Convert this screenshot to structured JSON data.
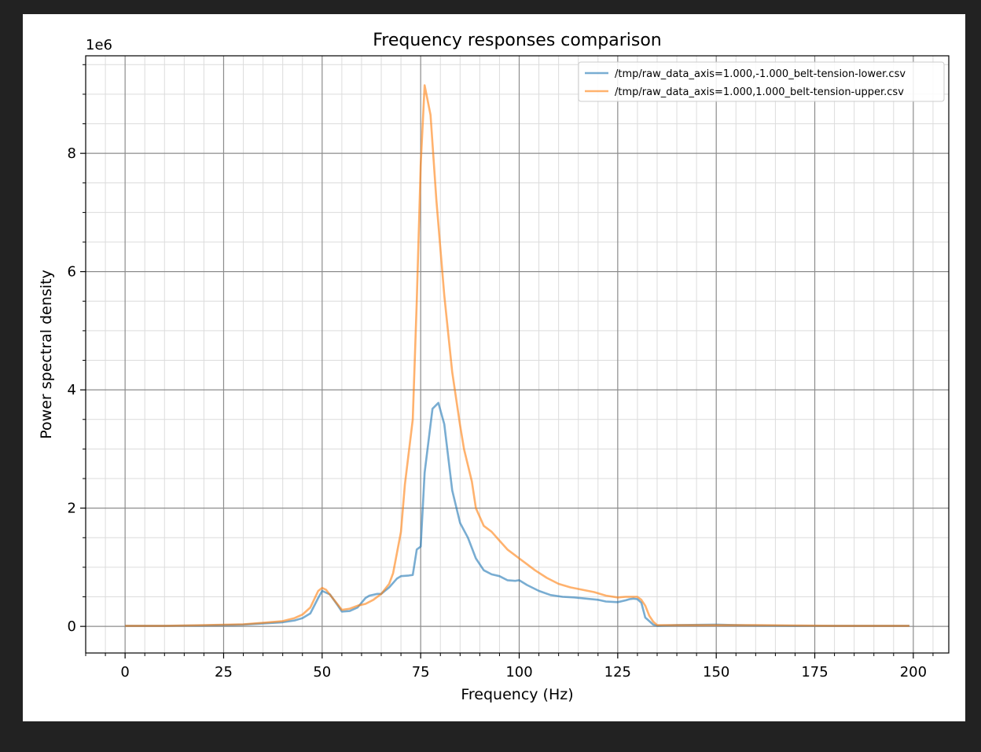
{
  "chart_data": {
    "type": "line",
    "title": "Frequency responses comparison",
    "xlabel": "Frequency (Hz)",
    "ylabel": "Power spectral density",
    "y_offset_text": "1e6",
    "xlim": [
      -10,
      209
    ],
    "ylim": [
      -0.45,
      9.65
    ],
    "y_scale_factor": 1000000,
    "xticks": [
      0,
      25,
      50,
      75,
      100,
      125,
      150,
      175,
      200
    ],
    "xtick_labels": [
      "0",
      "25",
      "50",
      "75",
      "100",
      "125",
      "150",
      "175",
      "200"
    ],
    "yticks": [
      0,
      2,
      4,
      6,
      8
    ],
    "ytick_labels": [
      "0",
      "2",
      "4",
      "6",
      "8"
    ],
    "x_minor_step": 5,
    "y_minor_step": 0.5,
    "grid": true,
    "legend_position": "upper right",
    "series": [
      {
        "name": "/tmp/raw_data_axis=1.000,-1.000_belt-tension-lower.csv",
        "color": "#1f77b4",
        "x": [
          0,
          10,
          20,
          30,
          35,
          40,
          43,
          45,
          47,
          49,
          50,
          52,
          54,
          55,
          57,
          59,
          61,
          62,
          64,
          65,
          67,
          69,
          70,
          72,
          73,
          74,
          75,
          76,
          78,
          79.5,
          81,
          83,
          85,
          87,
          89,
          91,
          93,
          95,
          97,
          99,
          100,
          102,
          105,
          108,
          111,
          114,
          117,
          120,
          122,
          125,
          127,
          128,
          129,
          130,
          131,
          132,
          134,
          135,
          140,
          150,
          155,
          160,
          170,
          180,
          190,
          199
        ],
        "y": [
          0.01,
          0.01,
          0.015,
          0.03,
          0.05,
          0.07,
          0.1,
          0.14,
          0.22,
          0.48,
          0.6,
          0.54,
          0.35,
          0.25,
          0.26,
          0.32,
          0.48,
          0.52,
          0.55,
          0.55,
          0.66,
          0.81,
          0.85,
          0.86,
          0.87,
          1.3,
          1.35,
          2.6,
          3.68,
          3.78,
          3.42,
          2.3,
          1.75,
          1.5,
          1.15,
          0.95,
          0.88,
          0.85,
          0.78,
          0.77,
          0.78,
          0.7,
          0.6,
          0.53,
          0.5,
          0.49,
          0.47,
          0.45,
          0.42,
          0.41,
          0.44,
          0.46,
          0.47,
          0.46,
          0.4,
          0.15,
          0.03,
          0.01,
          0.02,
          0.03,
          0.02,
          0.015,
          0.01,
          0.01,
          0.01,
          0.01
        ]
      },
      {
        "name": "/tmp/raw_data_axis=1.000,1.000_belt-tension-upper.csv",
        "color": "#ff7f0e",
        "x": [
          0,
          10,
          20,
          30,
          35,
          40,
          43,
          45,
          47,
          49,
          50,
          51,
          53,
          55,
          57,
          59,
          61,
          63,
          65,
          67,
          68,
          70,
          71,
          73,
          74,
          75,
          76,
          77.5,
          79,
          81,
          83,
          85,
          86,
          88,
          89,
          91,
          93,
          95,
          97,
          99,
          100,
          102,
          104,
          107,
          110,
          113,
          116,
          119,
          122,
          125,
          127,
          129,
          130,
          131,
          132,
          133,
          134,
          135,
          140,
          150,
          160,
          170,
          180,
          190,
          199
        ],
        "y": [
          0.01,
          0.01,
          0.02,
          0.035,
          0.06,
          0.09,
          0.14,
          0.2,
          0.32,
          0.6,
          0.65,
          0.62,
          0.45,
          0.28,
          0.3,
          0.35,
          0.38,
          0.45,
          0.55,
          0.72,
          0.9,
          1.6,
          2.4,
          3.5,
          5.5,
          7.8,
          9.15,
          8.65,
          7.2,
          5.6,
          4.3,
          3.4,
          3.0,
          2.45,
          2.0,
          1.7,
          1.6,
          1.45,
          1.3,
          1.2,
          1.15,
          1.05,
          0.95,
          0.82,
          0.72,
          0.66,
          0.62,
          0.58,
          0.52,
          0.49,
          0.5,
          0.5,
          0.5,
          0.45,
          0.35,
          0.18,
          0.08,
          0.02,
          0.02,
          0.02,
          0.02,
          0.015,
          0.01,
          0.01,
          0.01
        ]
      }
    ]
  }
}
